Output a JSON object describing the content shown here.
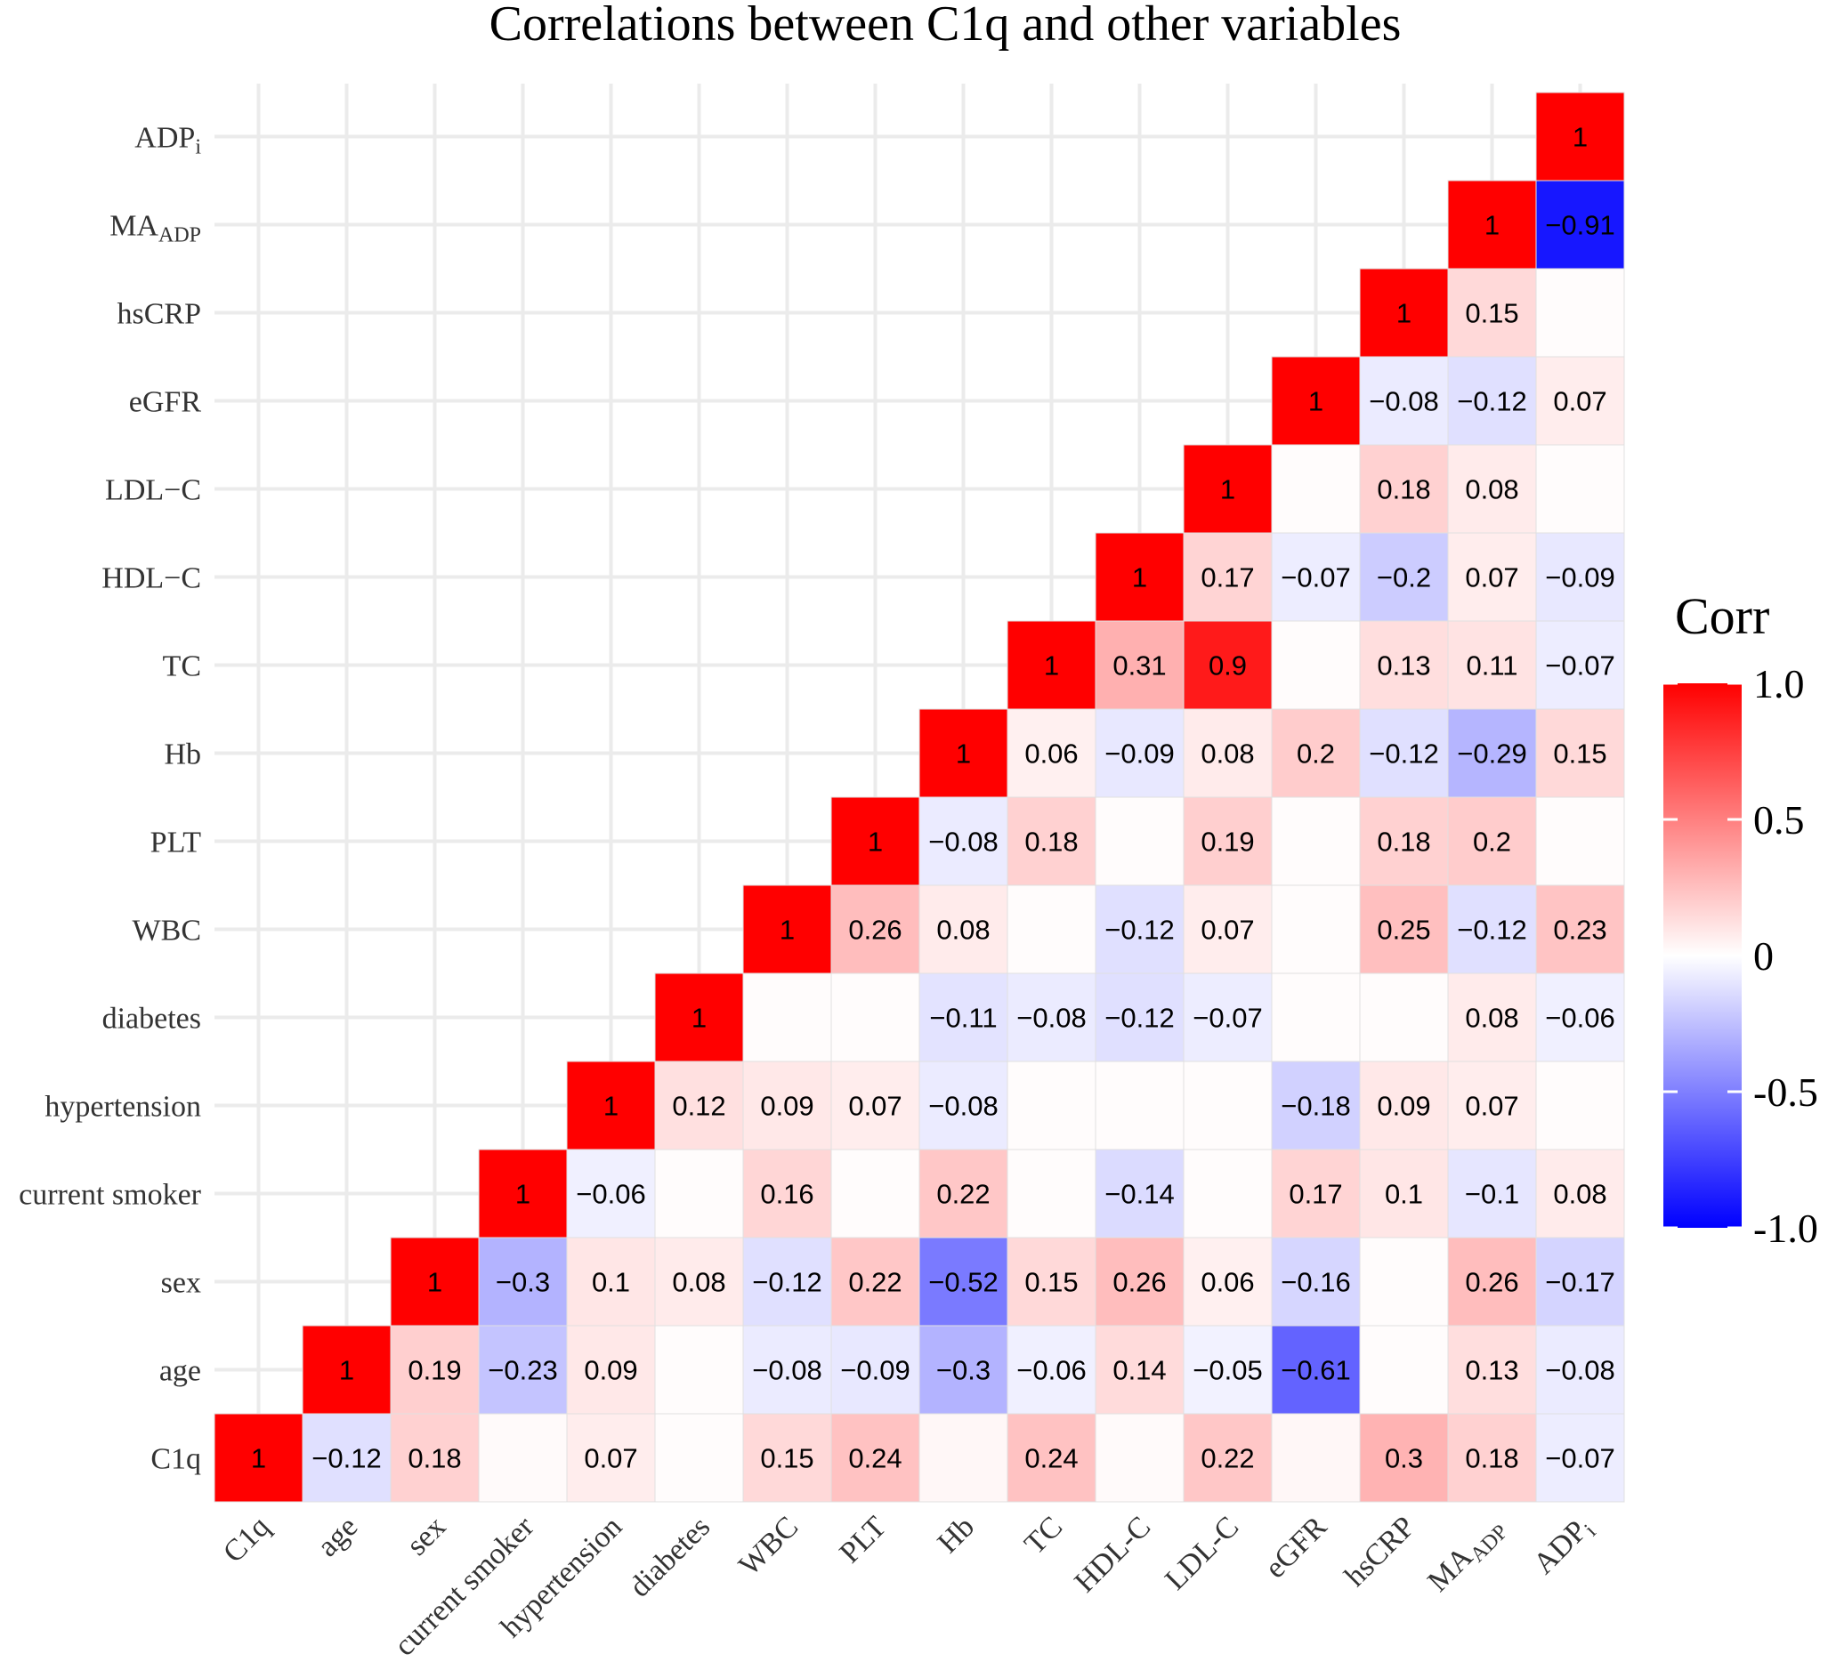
{
  "chart_data": {
    "type": "heatmap",
    "title": "Correlations between C1q and other variables",
    "legend_title": "Corr",
    "legend_ticks": [
      "1.0",
      "0.5",
      "0",
      "-0.5",
      "-1.0"
    ],
    "legend_tick_values": [
      1.0,
      0.5,
      0,
      -0.5,
      -1.0
    ],
    "color_scale": {
      "low": "#0000ff",
      "mid": "#ffffff",
      "high": "#ff0000",
      "limits": [
        -1,
        1
      ]
    },
    "variables": [
      {
        "base": "C1q",
        "sub": ""
      },
      {
        "base": "age",
        "sub": ""
      },
      {
        "base": "sex",
        "sub": ""
      },
      {
        "base": "current smoker",
        "sub": ""
      },
      {
        "base": "hypertension",
        "sub": ""
      },
      {
        "base": "diabetes",
        "sub": ""
      },
      {
        "base": "WBC",
        "sub": ""
      },
      {
        "base": "PLT",
        "sub": ""
      },
      {
        "base": "Hb",
        "sub": ""
      },
      {
        "base": "TC",
        "sub": ""
      },
      {
        "base": "HDL−C",
        "sub": ""
      },
      {
        "base": "LDL−C",
        "sub": ""
      },
      {
        "base": "eGFR",
        "sub": ""
      },
      {
        "base": "hsCRP",
        "sub": ""
      },
      {
        "base": "MA",
        "sub": "ADP"
      },
      {
        "base": "ADP",
        "sub": "i"
      }
    ],
    "x_labels": [
      {
        "base": "C1q",
        "sub": ""
      },
      {
        "base": "age",
        "sub": ""
      },
      {
        "base": "sex",
        "sub": ""
      },
      {
        "base": "current smoker",
        "sub": ""
      },
      {
        "base": "hypertension",
        "sub": ""
      },
      {
        "base": "diabetes",
        "sub": ""
      },
      {
        "base": "WBC",
        "sub": ""
      },
      {
        "base": "PLT",
        "sub": ""
      },
      {
        "base": "Hb",
        "sub": ""
      },
      {
        "base": "TC",
        "sub": ""
      },
      {
        "base": "HDL-C",
        "sub": ""
      },
      {
        "base": "LDL-C",
        "sub": ""
      },
      {
        "base": "eGFR",
        "sub": ""
      },
      {
        "base": "hsCRP",
        "sub": ""
      },
      {
        "base": "MA",
        "sub": "ADP"
      },
      {
        "base": "ADP",
        "sub": "i"
      }
    ],
    "matrix": [
      [
        1,
        -0.12,
        0.18,
        0.02,
        0.07,
        0.01,
        0.15,
        0.24,
        0.03,
        0.24,
        0.02,
        0.22,
        0.03,
        0.3,
        0.18,
        -0.07
      ],
      [
        null,
        1,
        0.19,
        -0.23,
        0.09,
        0.01,
        -0.08,
        -0.09,
        -0.3,
        -0.06,
        0.14,
        -0.05,
        -0.61,
        0.01,
        0.13,
        -0.08
      ],
      [
        null,
        null,
        1,
        -0.3,
        0.1,
        0.08,
        -0.12,
        0.22,
        -0.52,
        0.15,
        0.26,
        0.06,
        -0.16,
        0.01,
        0.26,
        -0.17
      ],
      [
        null,
        null,
        null,
        1,
        -0.06,
        0.01,
        0.16,
        0.01,
        0.22,
        0.01,
        -0.14,
        0.01,
        0.17,
        0.1,
        -0.1,
        0.08
      ],
      [
        null,
        null,
        null,
        null,
        1,
        0.12,
        0.09,
        0.07,
        -0.08,
        0.01,
        0.01,
        0.01,
        -0.18,
        0.09,
        0.07,
        0.01
      ],
      [
        null,
        null,
        null,
        null,
        null,
        1,
        0.01,
        0.01,
        -0.11,
        -0.08,
        -0.12,
        -0.07,
        0.01,
        0.01,
        0.08,
        -0.06
      ],
      [
        null,
        null,
        null,
        null,
        null,
        null,
        1,
        0.26,
        0.08,
        0.01,
        -0.12,
        0.07,
        0.01,
        0.25,
        -0.12,
        0.23
      ],
      [
        null,
        null,
        null,
        null,
        null,
        null,
        null,
        1,
        -0.08,
        0.18,
        0.01,
        0.19,
        0.01,
        0.18,
        0.2,
        0.01
      ],
      [
        null,
        null,
        null,
        null,
        null,
        null,
        null,
        null,
        1,
        0.06,
        -0.09,
        0.08,
        0.2,
        -0.12,
        -0.29,
        0.15
      ],
      [
        null,
        null,
        null,
        null,
        null,
        null,
        null,
        null,
        null,
        1,
        0.31,
        0.9,
        0.01,
        0.13,
        0.11,
        -0.07
      ],
      [
        null,
        null,
        null,
        null,
        null,
        null,
        null,
        null,
        null,
        null,
        1,
        0.17,
        -0.07,
        -0.2,
        0.07,
        -0.09
      ],
      [
        null,
        null,
        null,
        null,
        null,
        null,
        null,
        null,
        null,
        null,
        null,
        1,
        0.01,
        0.18,
        0.08,
        0.01
      ],
      [
        null,
        null,
        null,
        null,
        null,
        null,
        null,
        null,
        null,
        null,
        null,
        null,
        1,
        -0.08,
        -0.12,
        0.07
      ],
      [
        null,
        null,
        null,
        null,
        null,
        null,
        null,
        null,
        null,
        null,
        null,
        null,
        null,
        1,
        0.15,
        0.01
      ],
      [
        null,
        null,
        null,
        null,
        null,
        null,
        null,
        null,
        null,
        null,
        null,
        null,
        null,
        null,
        1,
        -0.91
      ],
      [
        null,
        null,
        null,
        null,
        null,
        null,
        null,
        null,
        null,
        null,
        null,
        null,
        null,
        null,
        null,
        1
      ]
    ],
    "labels": [
      [
        "1",
        "−0.12",
        "0.18",
        "",
        "0.07",
        "",
        "0.15",
        "0.24",
        "",
        "0.24",
        "",
        "0.22",
        "",
        "0.3",
        "0.18",
        "−0.07"
      ],
      [
        null,
        "1",
        "0.19",
        "−0.23",
        "0.09",
        "",
        "−0.08",
        "−0.09",
        "−0.3",
        "−0.06",
        "0.14",
        "−0.05",
        "−0.61",
        "",
        "0.13",
        "−0.08"
      ],
      [
        null,
        null,
        "1",
        "−0.3",
        "0.1",
        "0.08",
        "−0.12",
        "0.22",
        "−0.52",
        "0.15",
        "0.26",
        "0.06",
        "−0.16",
        "",
        "0.26",
        "−0.17"
      ],
      [
        null,
        null,
        null,
        "1",
        "−0.06",
        "",
        "0.16",
        "",
        "0.22",
        "",
        "−0.14",
        "",
        "0.17",
        "0.1",
        "−0.1",
        "0.08"
      ],
      [
        null,
        null,
        null,
        null,
        "1",
        "0.12",
        "0.09",
        "0.07",
        "−0.08",
        "",
        "",
        "",
        "−0.18",
        "0.09",
        "0.07",
        ""
      ],
      [
        null,
        null,
        null,
        null,
        null,
        "1",
        "",
        "",
        "−0.11",
        "−0.08",
        "−0.12",
        "−0.07",
        "",
        "",
        "0.08",
        "−0.06"
      ],
      [
        null,
        null,
        null,
        null,
        null,
        null,
        "1",
        "0.26",
        "0.08",
        "",
        "−0.12",
        "0.07",
        "",
        "0.25",
        "−0.12",
        "0.23"
      ],
      [
        null,
        null,
        null,
        null,
        null,
        null,
        null,
        "1",
        "−0.08",
        "0.18",
        "",
        "0.19",
        "",
        "0.18",
        "0.2",
        ""
      ],
      [
        null,
        null,
        null,
        null,
        null,
        null,
        null,
        null,
        "1",
        "0.06",
        "−0.09",
        "0.08",
        "0.2",
        "−0.12",
        "−0.29",
        "0.15"
      ],
      [
        null,
        null,
        null,
        null,
        null,
        null,
        null,
        null,
        null,
        "1",
        "0.31",
        "0.9",
        "",
        "0.13",
        "0.11",
        "−0.07"
      ],
      [
        null,
        null,
        null,
        null,
        null,
        null,
        null,
        null,
        null,
        null,
        "1",
        "0.17",
        "−0.07",
        "−0.2",
        "0.07",
        "−0.09"
      ],
      [
        null,
        null,
        null,
        null,
        null,
        null,
        null,
        null,
        null,
        null,
        null,
        "1",
        "",
        "0.18",
        "0.08",
        ""
      ],
      [
        null,
        null,
        null,
        null,
        null,
        null,
        null,
        null,
        null,
        null,
        null,
        null,
        "1",
        "−0.08",
        "−0.12",
        "0.07"
      ],
      [
        null,
        null,
        null,
        null,
        null,
        null,
        null,
        null,
        null,
        null,
        null,
        null,
        null,
        "1",
        "0.15",
        ""
      ],
      [
        null,
        null,
        null,
        null,
        null,
        null,
        null,
        null,
        null,
        null,
        null,
        null,
        null,
        null,
        "1",
        "−0.91"
      ],
      [
        null,
        null,
        null,
        null,
        null,
        null,
        null,
        null,
        null,
        null,
        null,
        null,
        null,
        null,
        null,
        "1"
      ]
    ],
    "grid": true
  }
}
